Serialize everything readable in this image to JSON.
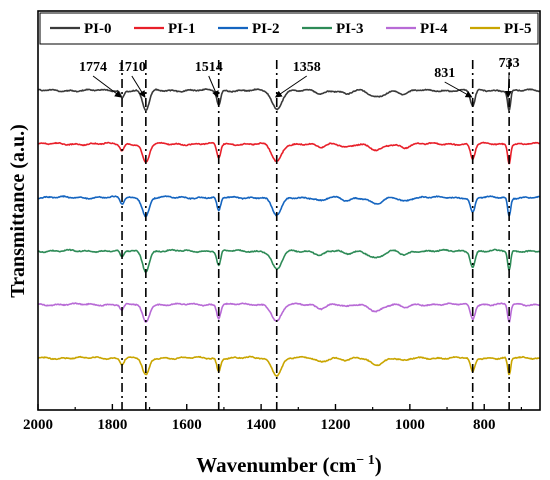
{
  "chart_data": {
    "type": "line",
    "xlabel": "Wavenumber (cm",
    "xlabel_sup": "− 1",
    "xlabel_close": ")",
    "ylabel": "Transmittance (a.u.)",
    "xlim": [
      2000,
      650
    ],
    "x_reversed": true,
    "y_ticks_shown": false,
    "grid": false,
    "legend": {
      "placement": "top",
      "frame": true
    },
    "x_ticks": [
      2000,
      1800,
      1600,
      1400,
      1200,
      1000,
      800
    ],
    "reference_lines": [
      1774,
      1710,
      1514,
      1358,
      831,
      733
    ],
    "annotations": [
      {
        "label": "1774",
        "x": 1774
      },
      {
        "label": "1710",
        "x": 1710
      },
      {
        "label": "1514",
        "x": 1514
      },
      {
        "label": "1358",
        "x": 1358
      },
      {
        "label": "831",
        "x": 831
      },
      {
        "label": "733",
        "x": 733
      }
    ],
    "peaks": [
      {
        "x": 1774,
        "depth": 0.35,
        "width": 5
      },
      {
        "x": 1710,
        "depth": 1.0,
        "width": 9
      },
      {
        "x": 1514,
        "depth": 0.75,
        "width": 5
      },
      {
        "x": 1358,
        "depth": 0.95,
        "width": 13
      },
      {
        "x": 1240,
        "depth": 0.2,
        "width": 12
      },
      {
        "x": 1170,
        "depth": 0.15,
        "width": 12
      },
      {
        "x": 1090,
        "depth": 0.35,
        "width": 18
      },
      {
        "x": 1015,
        "depth": 0.18,
        "width": 12
      },
      {
        "x": 831,
        "depth": 0.8,
        "width": 6
      },
      {
        "x": 733,
        "depth": 1.0,
        "width": 4
      }
    ],
    "series": [
      {
        "name": "PI-0",
        "color": "#3a3a3a",
        "offset": 5,
        "depth_scale": 0.9
      },
      {
        "name": "PI-1",
        "color": "#e8202a",
        "offset": 4,
        "depth_scale": 0.85
      },
      {
        "name": "PI-2",
        "color": "#1565c0",
        "offset": 3,
        "depth_scale": 0.85
      },
      {
        "name": "PI-3",
        "color": "#2e8b57",
        "offset": 2,
        "depth_scale": 0.9
      },
      {
        "name": "PI-4",
        "color": "#b86bd6",
        "offset": 1,
        "depth_scale": 0.8
      },
      {
        "name": "PI-5",
        "color": "#c9a500",
        "offset": 0,
        "depth_scale": 0.8
      }
    ]
  }
}
